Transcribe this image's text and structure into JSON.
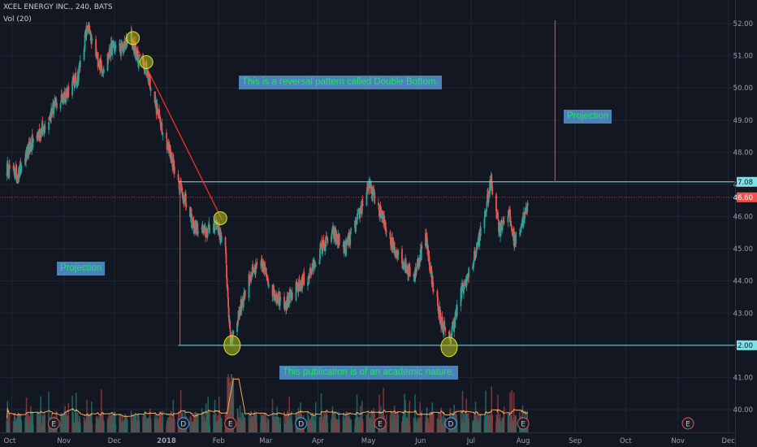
{
  "header": {
    "symbol": "XCEL ENERGY INC., 240, BATS",
    "volume_indicator": "Vol (20)"
  },
  "annotations": {
    "pattern_note": "This is a reversal pattern called Double Bottom.",
    "projection_right": "Projection",
    "projection_left": "Projection",
    "disclaimer": "This publication is of an academic nature."
  },
  "price_labels": {
    "resistance": "47.08",
    "last_price": "46.60",
    "support": "42.00"
  },
  "colors": {
    "background": "#131722",
    "up_candle": "#26a69a",
    "down_candle": "#ef5350",
    "horizontal_line": "#7fe0e6",
    "projection_line": "#ff2d2d",
    "trend_line": "#ff3030",
    "volume_ma": "#f2a65e",
    "callout_fill": "#4a82b9",
    "callout_text": "#1ee85a"
  },
  "chart_data": {
    "type": "candlestick",
    "y_axis": {
      "min": 39.5,
      "max": 52.0,
      "ticks": [
        40.0,
        41.0,
        42.0,
        43.0,
        44.0,
        45.0,
        46.0,
        47.0,
        48.0,
        49.0,
        50.0,
        51.0,
        52.0
      ],
      "position": "right"
    },
    "x_ticks": [
      "Oct",
      "Nov",
      "Dec",
      "2018",
      "Feb",
      "Mar",
      "Apr",
      "May",
      "Jun",
      "Jul",
      "Aug",
      "Sep",
      "Oct",
      "Nov",
      "Dec"
    ],
    "price_path": [
      {
        "date": "2017-09-28",
        "close": 47.5
      },
      {
        "date": "2017-10-05",
        "close": 47.3
      },
      {
        "date": "2017-10-12",
        "close": 48.2
      },
      {
        "date": "2017-10-19",
        "close": 48.7
      },
      {
        "date": "2017-10-26",
        "close": 49.4
      },
      {
        "date": "2017-11-02",
        "close": 49.8
      },
      {
        "date": "2017-11-09",
        "close": 50.3
      },
      {
        "date": "2017-11-15",
        "close": 51.9
      },
      {
        "date": "2017-11-20",
        "close": 51.0
      },
      {
        "date": "2017-11-24",
        "close": 50.6
      },
      {
        "date": "2017-11-30",
        "close": 51.3
      },
      {
        "date": "2017-12-06",
        "close": 51.2
      },
      {
        "date": "2017-12-11",
        "close": 51.6
      },
      {
        "date": "2017-12-15",
        "close": 50.9
      },
      {
        "date": "2017-12-20",
        "close": 50.6
      },
      {
        "date": "2017-12-27",
        "close": 49.2
      },
      {
        "date": "2018-01-03",
        "close": 48.0
      },
      {
        "date": "2018-01-10",
        "close": 46.8
      },
      {
        "date": "2018-01-17",
        "close": 45.7
      },
      {
        "date": "2018-01-24",
        "close": 45.5
      },
      {
        "date": "2018-01-31",
        "close": 45.8
      },
      {
        "date": "2018-02-05",
        "close": 44.9
      },
      {
        "date": "2018-02-08",
        "close": 42.1
      },
      {
        "date": "2018-02-13",
        "close": 43.0
      },
      {
        "date": "2018-02-20",
        "close": 44.2
      },
      {
        "date": "2018-02-27",
        "close": 44.5
      },
      {
        "date": "2018-03-06",
        "close": 43.6
      },
      {
        "date": "2018-03-13",
        "close": 43.3
      },
      {
        "date": "2018-03-20",
        "close": 43.8
      },
      {
        "date": "2018-03-27",
        "close": 44.2
      },
      {
        "date": "2018-04-03",
        "close": 45.0
      },
      {
        "date": "2018-04-10",
        "close": 45.5
      },
      {
        "date": "2018-04-17",
        "close": 45.0
      },
      {
        "date": "2018-04-24",
        "close": 45.8
      },
      {
        "date": "2018-05-01",
        "close": 47.0
      },
      {
        "date": "2018-05-07",
        "close": 46.3
      },
      {
        "date": "2018-05-14",
        "close": 45.3
      },
      {
        "date": "2018-05-21",
        "close": 44.6
      },
      {
        "date": "2018-05-28",
        "close": 44.1
      },
      {
        "date": "2018-06-04",
        "close": 45.4
      },
      {
        "date": "2018-06-08",
        "close": 44.0
      },
      {
        "date": "2018-06-13",
        "close": 42.8
      },
      {
        "date": "2018-06-18",
        "close": 42.1
      },
      {
        "date": "2018-06-25",
        "close": 43.6
      },
      {
        "date": "2018-07-02",
        "close": 44.5
      },
      {
        "date": "2018-07-09",
        "close": 46.0
      },
      {
        "date": "2018-07-13",
        "close": 47.1
      },
      {
        "date": "2018-07-18",
        "close": 45.6
      },
      {
        "date": "2018-07-23",
        "close": 46.2
      },
      {
        "date": "2018-07-27",
        "close": 45.2
      },
      {
        "date": "2018-08-01",
        "close": 45.9
      },
      {
        "date": "2018-08-06",
        "close": 46.6
      }
    ],
    "horizontal_lines": [
      47.08,
      42.0,
      46.6
    ],
    "trend_line": [
      {
        "date": "2017-12-11",
        "price": 51.6
      },
      {
        "date": "2018-02-03",
        "price": 45.9
      }
    ],
    "projection_lines": [
      {
        "date": "2018-01-09",
        "from": 42.0,
        "to": 47.0
      },
      {
        "date": "2018-08-20",
        "from": 47.08,
        "to": 52.1
      }
    ],
    "highlighted_points": [
      {
        "date": "2017-12-12",
        "price": 51.55
      },
      {
        "date": "2017-12-20",
        "price": 50.8
      },
      {
        "date": "2018-02-02",
        "price": 45.95
      },
      {
        "date": "2018-02-09",
        "price": 42.0
      },
      {
        "date": "2018-06-18",
        "price": 41.95
      }
    ],
    "earnings_markers": [
      {
        "label": "E",
        "date": "2017-10-26",
        "color": "#ef5350"
      },
      {
        "label": "D",
        "date": "2018-01-11",
        "color": "#42a5f5"
      },
      {
        "label": "E",
        "date": "2018-02-08",
        "color": "#ef5350"
      },
      {
        "label": "D",
        "date": "2018-03-22",
        "color": "#42a5f5"
      },
      {
        "label": "E",
        "date": "2018-05-08",
        "color": "#ef5350"
      },
      {
        "label": "D",
        "date": "2018-06-19",
        "color": "#42a5f5"
      },
      {
        "label": "E",
        "date": "2018-08-01",
        "color": "#ef5350"
      },
      {
        "label": "E",
        "date": "2018-11-07",
        "color": "#ef5350"
      }
    ],
    "volume_indicator": "Vol (20)",
    "grid": true
  }
}
